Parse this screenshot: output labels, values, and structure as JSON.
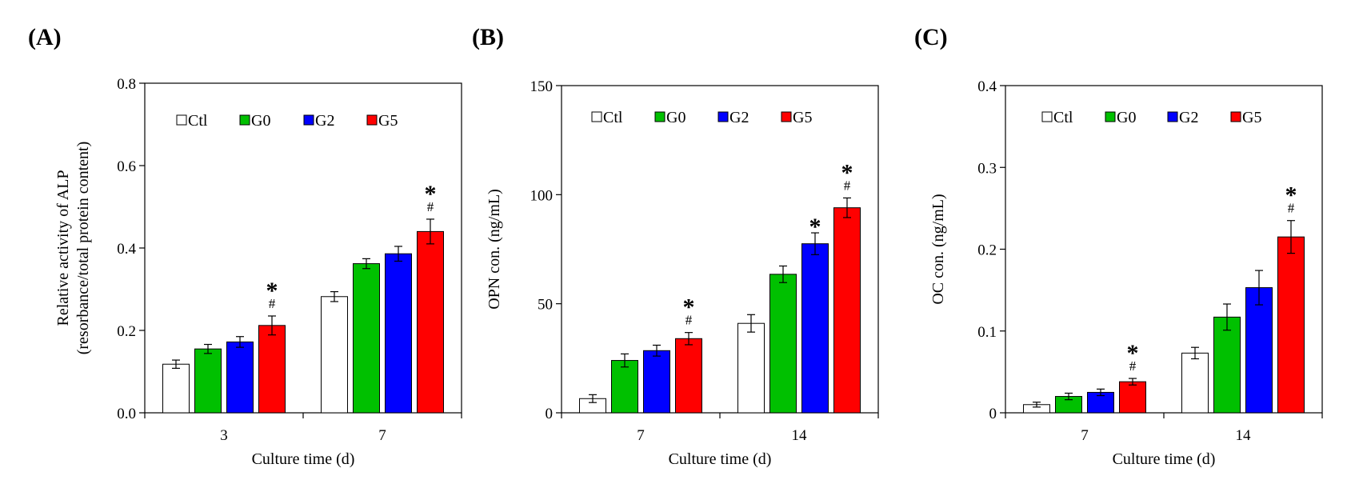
{
  "chart_data": [
    {
      "type": "bar",
      "panel_label": "(A)",
      "title": "",
      "xlabel": "Culture time (d)",
      "ylabel_lines": [
        "Relative activity of ALP",
        "(resorbance/total protein content)"
      ],
      "ylim": [
        0,
        0.8
      ],
      "yticks": [
        0,
        0.2,
        0.4,
        0.6,
        0.8
      ],
      "ytick_labels": [
        "0.0",
        "0.2",
        "0.4",
        "0.6",
        "0.8"
      ],
      "categories": [
        "3",
        "7"
      ],
      "series": [
        {
          "name": "Ctl",
          "color": "#ffffff",
          "values": [
            0.118,
            0.282
          ],
          "errors": [
            0.01,
            0.012
          ]
        },
        {
          "name": "G0",
          "color": "#00c000",
          "values": [
            0.155,
            0.362
          ],
          "errors": [
            0.011,
            0.012
          ]
        },
        {
          "name": "G2",
          "color": "#0000ff",
          "values": [
            0.172,
            0.386
          ],
          "errors": [
            0.013,
            0.018
          ]
        },
        {
          "name": "G5",
          "color": "#ff0000",
          "values": [
            0.212,
            0.44
          ],
          "errors": [
            0.023,
            0.03
          ]
        }
      ],
      "legend_position": "top",
      "annotations": [
        {
          "category_index": 0,
          "series_index": 3,
          "marks": [
            "*",
            "#"
          ]
        },
        {
          "category_index": 1,
          "series_index": 3,
          "marks": [
            "*",
            "#"
          ]
        }
      ]
    },
    {
      "type": "bar",
      "panel_label": "(B)",
      "title": "",
      "xlabel": "Culture time (d)",
      "ylabel_lines": [
        "OPN con. (ng/mL)"
      ],
      "ylim": [
        0,
        150
      ],
      "yticks": [
        0,
        50,
        100,
        150
      ],
      "ytick_labels": [
        "0",
        "50",
        "100",
        "150"
      ],
      "categories": [
        "7",
        "14"
      ],
      "series": [
        {
          "name": "Ctl",
          "color": "#ffffff",
          "values": [
            6.5,
            41.0
          ],
          "errors": [
            1.8,
            4.0
          ]
        },
        {
          "name": "G0",
          "color": "#00c000",
          "values": [
            24.0,
            63.5
          ],
          "errors": [
            3.0,
            3.8
          ]
        },
        {
          "name": "G2",
          "color": "#0000ff",
          "values": [
            28.5,
            77.5
          ],
          "errors": [
            2.5,
            5.0
          ]
        },
        {
          "name": "G5",
          "color": "#ff0000",
          "values": [
            34.0,
            94.0
          ],
          "errors": [
            2.8,
            4.5
          ]
        }
      ],
      "legend_position": "top",
      "annotations": [
        {
          "category_index": 0,
          "series_index": 3,
          "marks": [
            "*",
            "#"
          ]
        },
        {
          "category_index": 1,
          "series_index": 2,
          "marks": [
            "*"
          ]
        },
        {
          "category_index": 1,
          "series_index": 3,
          "marks": [
            "*",
            "#"
          ]
        }
      ]
    },
    {
      "type": "bar",
      "panel_label": "(C)",
      "title": "",
      "xlabel": "Culture time (d)",
      "ylabel_lines": [
        "OC con. (ng/mL)"
      ],
      "ylim": [
        0,
        0.4
      ],
      "yticks": [
        0,
        0.1,
        0.2,
        0.3,
        0.4
      ],
      "ytick_labels": [
        "0",
        "0.1",
        "0.2",
        "0.3",
        "0.4"
      ],
      "categories": [
        "7",
        "14"
      ],
      "series": [
        {
          "name": "Ctl",
          "color": "#ffffff",
          "values": [
            0.01,
            0.073
          ],
          "errors": [
            0.003,
            0.007
          ]
        },
        {
          "name": "G0",
          "color": "#00c000",
          "values": [
            0.02,
            0.117
          ],
          "errors": [
            0.004,
            0.016
          ]
        },
        {
          "name": "G2",
          "color": "#0000ff",
          "values": [
            0.025,
            0.153
          ],
          "errors": [
            0.004,
            0.021
          ]
        },
        {
          "name": "G5",
          "color": "#ff0000",
          "values": [
            0.038,
            0.215
          ],
          "errors": [
            0.004,
            0.02
          ]
        }
      ],
      "legend_position": "top",
      "annotations": [
        {
          "category_index": 0,
          "series_index": 3,
          "marks": [
            "*",
            "#"
          ]
        },
        {
          "category_index": 1,
          "series_index": 3,
          "marks": [
            "*",
            "#"
          ]
        }
      ]
    }
  ]
}
